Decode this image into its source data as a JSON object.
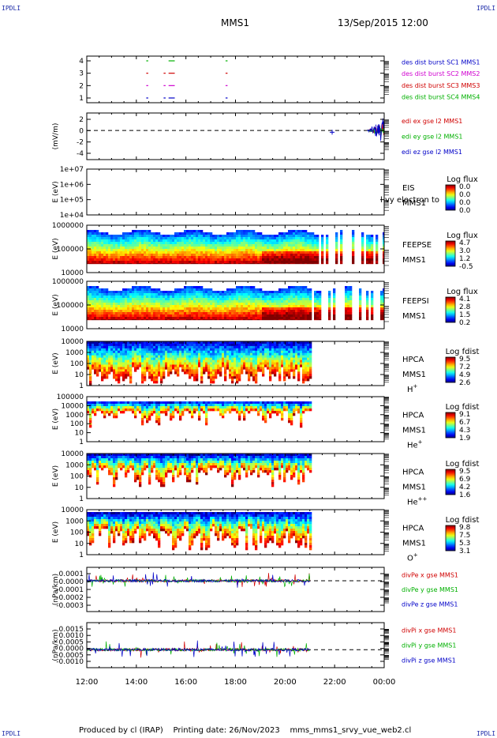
{
  "header": {
    "corner_label": "IPDLI",
    "spacecraft": "MMS1",
    "datetime": "13/Sep/2015 12:00"
  },
  "footer": {
    "produced_by": "Produced by cl (IRAP)",
    "printing_date": "Printing date: 26/Nov/2023",
    "filename": "mms_mms1_srvy_vue_web2.cl"
  },
  "chart_data": {
    "type": "multi-panel time series and spectrograms",
    "time_axis": {
      "ticks": [
        "12:00",
        "14:00",
        "16:00",
        "18:00",
        "20:00",
        "22:00",
        "00:00"
      ],
      "start_hour": 12,
      "end_hour": 24
    },
    "panels": [
      {
        "id": "burst",
        "type": "event-markers",
        "y_ticks": [
          "4",
          "3",
          "2",
          "1"
        ],
        "legend": [
          "des dist burst SC1 MMS1",
          "des dist burst SC2 MMS2",
          "des dist burst SC3 MMS3",
          "des dist burst SC4 MMS4"
        ],
        "legend_colors": [
          "#0000c8",
          "#d000d0",
          "#d00000",
          "#00b000"
        ],
        "intervals_hours": [
          [
            14.4,
            14.48
          ],
          [
            15.1,
            15.18
          ],
          [
            15.3,
            15.55
          ],
          [
            17.6,
            17.68
          ]
        ]
      },
      {
        "id": "edi",
        "type": "line",
        "ylabel": "(mV/m)",
        "y_ticks": [
          "2",
          "0",
          "-2",
          "-4"
        ],
        "ylim": [
          -5,
          3
        ],
        "legend": [
          "edi ex gse l2 MMS1",
          "edi ey gse l2 MMS1",
          "edi ez gse l2 MMS1"
        ],
        "legend_colors": [
          "#d00000",
          "#00b000",
          "#0000c8"
        ],
        "data_start_hour": 23.3
      },
      {
        "id": "eis",
        "type": "spectrogram",
        "ylabel": "E (eV)",
        "y_ticks": [
          "1e+07",
          "1e+06",
          "1e+05",
          "1e+04"
        ],
        "label_lines": [
          "EIS",
          "MMS1"
        ],
        "overlay_text": "l  vy electron to",
        "colorbar": {
          "title": "Log flux",
          "ticks": [
            "0.0",
            "0.0",
            "0.0",
            "0.0"
          ]
        },
        "empty": true
      },
      {
        "id": "feepse",
        "type": "spectrogram",
        "ylabel": "E (eV)",
        "y_ticks": [
          "1000000",
          "100000",
          "10000"
        ],
        "label_lines": [
          "FEEPSE",
          "MMS1"
        ],
        "colorbar": {
          "title": "Log flux",
          "ticks": [
            "4.7",
            "3.0",
            "1.2",
            "-0.5"
          ]
        },
        "end_hour": 24,
        "gappy_after_hour": 21.0
      },
      {
        "id": "feepsi",
        "type": "spectrogram",
        "ylabel": "E (eV)",
        "y_ticks": [
          "1000000",
          "100000",
          "10000"
        ],
        "label_lines": [
          "FEEPSI",
          "MMS1"
        ],
        "colorbar": {
          "title": "Log flux",
          "ticks": [
            "4.1",
            "2.8",
            "1.5",
            "0.2"
          ]
        },
        "end_hour": 24,
        "gappy_after_hour": 21.0
      },
      {
        "id": "hpca_h",
        "type": "spectrogram",
        "ylabel": "E (eV)",
        "y_ticks": [
          "10000",
          "1000",
          "100",
          "10",
          "1"
        ],
        "label_lines": [
          "HPCA",
          "MMS1"
        ],
        "species": "H",
        "charge": "+",
        "colorbar": {
          "title": "Log fdist",
          "ticks": [
            "9.5",
            "7.2",
            "4.9",
            "2.6"
          ]
        },
        "end_hour": 21.0
      },
      {
        "id": "hpca_he",
        "type": "spectrogram",
        "ylabel": "E (eV)",
        "y_ticks": [
          "100000",
          "10000",
          "1000",
          "100",
          "10",
          "1"
        ],
        "label_lines": [
          "HPCA",
          "MMS1"
        ],
        "species": "He",
        "charge": "+",
        "colorbar": {
          "title": "Log fdist",
          "ticks": [
            "9.1",
            "6.7",
            "4.3",
            "1.9"
          ]
        },
        "end_hour": 21.0
      },
      {
        "id": "hpca_hepp",
        "type": "spectrogram",
        "ylabel": "E (eV)",
        "y_ticks": [
          "10000",
          "1000",
          "100",
          "10",
          "1"
        ],
        "label_lines": [
          "HPCA",
          "MMS1"
        ],
        "species": "He",
        "charge": "++",
        "colorbar": {
          "title": "Log fdist",
          "ticks": [
            "9.5",
            "6.9",
            "4.2",
            "1.6"
          ]
        },
        "end_hour": 21.0
      },
      {
        "id": "hpca_o",
        "type": "spectrogram",
        "ylabel": "E (eV)",
        "y_ticks": [
          "10000",
          "1000",
          "100",
          "10",
          "1"
        ],
        "label_lines": [
          "HPCA",
          "MMS1"
        ],
        "species": "O",
        "charge": "+",
        "colorbar": {
          "title": "Log fdist",
          "ticks": [
            "9.8",
            "7.5",
            "5.3",
            "3.1"
          ]
        },
        "end_hour": 21.0
      },
      {
        "id": "divpe",
        "type": "line",
        "ylabel": "(nPa/km)",
        "y_ticks": [
          "0.0001",
          "-0.0000",
          "-0.0001",
          "-0.0002",
          "-0.0003"
        ],
        "ylim": [
          -0.00032,
          0.00014
        ],
        "legend": [
          "divPe x gse MMS1",
          "divPe y gse MMS1",
          "divPe z gse MMS1"
        ],
        "legend_colors": [
          "#d00000",
          "#00b000",
          "#0000c8"
        ],
        "end_hour": 21.0
      },
      {
        "id": "divpi",
        "type": "line",
        "ylabel": "(nPa/km)",
        "y_ticks": [
          "0.0015",
          "0.0010",
          "0.0005",
          "0.0000",
          "-0.0005",
          "-0.0010"
        ],
        "ylim": [
          -0.0012,
          0.0018
        ],
        "legend": [
          "divPi x gse MMS1",
          "divPi y gse MMS1",
          "divPi z gse MMS1"
        ],
        "legend_colors": [
          "#d00000",
          "#00b000",
          "#0000c8"
        ],
        "end_hour": 21.0
      }
    ]
  }
}
